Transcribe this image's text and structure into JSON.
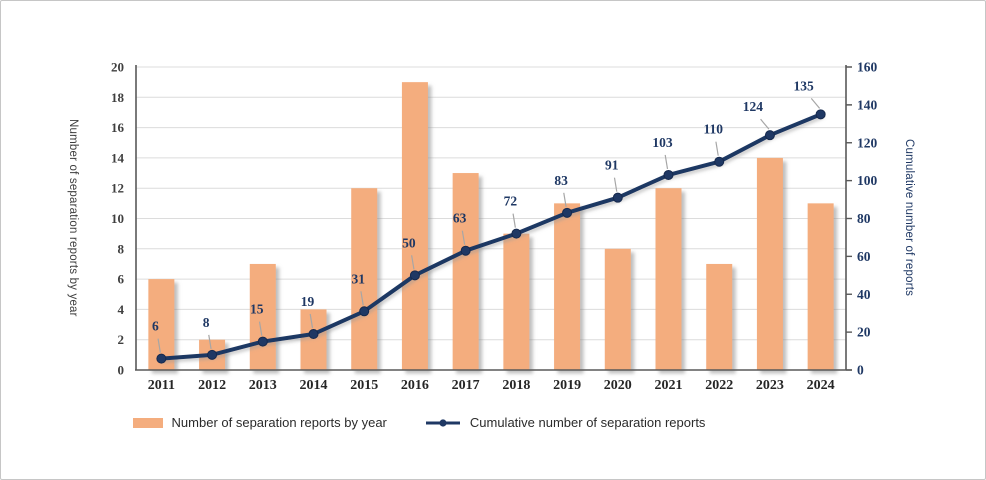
{
  "frame": {
    "background": "#ffffff",
    "border_color": "#c6c6c6"
  },
  "chart_data": {
    "type": "bar",
    "subtype": "combo-bar-line",
    "categories": [
      "2011",
      "2012",
      "2013",
      "2014",
      "2015",
      "2016",
      "2017",
      "2018",
      "2019",
      "2020",
      "2021",
      "2022",
      "2023",
      "2024"
    ],
    "series": [
      {
        "name": "Number of separation reports by year",
        "type": "bar",
        "axis": "left",
        "color": "#F4AD7E",
        "values": [
          6,
          2,
          7,
          4,
          12,
          19,
          13,
          9,
          11,
          8,
          12,
          7,
          14,
          11
        ]
      },
      {
        "name": "Cumulative number of separation reports",
        "type": "line",
        "axis": "right",
        "color": "#1F3864",
        "values": [
          6,
          8,
          15,
          19,
          31,
          50,
          63,
          72,
          83,
          91,
          103,
          110,
          124,
          135
        ],
        "data_labels": [
          "6",
          "8",
          "15",
          "19",
          "31",
          "50",
          "63",
          "72",
          "83",
          "91",
          "103",
          "110",
          "124",
          "135"
        ]
      }
    ],
    "left_axis": {
      "title": "Number of separation reports by year",
      "min": 0,
      "max": 20,
      "step": 2,
      "tick_labels": [
        "0",
        "2",
        "4",
        "6",
        "8",
        "10",
        "12",
        "14",
        "16",
        "18",
        "20"
      ],
      "tick_color": "#3f3f3f",
      "title_color": "#3d3d3d"
    },
    "right_axis": {
      "title": "Cumulative number of reports",
      "min": 0,
      "max": 160,
      "step": 20,
      "tick_labels": [
        "0",
        "20",
        "40",
        "60",
        "80",
        "100",
        "120",
        "140",
        "160"
      ],
      "tick_color": "#1F3864",
      "title_color": "#1F3864"
    },
    "x_axis": {
      "tick_color": "#262626"
    },
    "grid": true,
    "gridline_color": "#dcdcdc",
    "axis_line_color": "#595959",
    "leader_line_color": "#a6a6a6",
    "legend": {
      "position": "bottom",
      "items": [
        {
          "label": "Number of separation reports by year",
          "swatch": "bar"
        },
        {
          "label": "Cumulative number of separation reports",
          "swatch": "line-marker"
        }
      ]
    }
  }
}
